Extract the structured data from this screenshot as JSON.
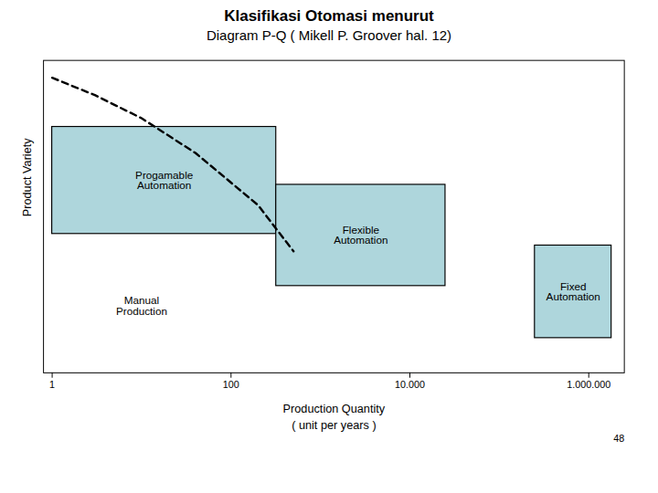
{
  "chart_data": {
    "type": "rect",
    "title": "Klasifikasi Otomasi menurut",
    "subtitle": "Diagram P-Q ( Mikell P. Groover hal. 12)",
    "xlabel": "Production Quantity\n( unit per years )",
    "ylabel": "Product Variety",
    "log": "x",
    "xlim": [
      0.8,
      2500000
    ],
    "ylim": [
      0,
      1.08
    ],
    "xticks": [
      1,
      100,
      {
        "value": 10000,
        "label": "10.000"
      },
      {
        "value": 1000000,
        "label": "1.000.000"
      }
    ],
    "yticks": [],
    "tick_labels": "x",
    "grid": false,
    "color": "#aed6dc",
    "boxes": [
      {
        "x0": 1,
        "x1": 320,
        "y0": 0.48,
        "y1": 0.85,
        "label": "Progamable\nAutomation"
      },
      {
        "x0": 320,
        "x1": 25000,
        "y0": 0.3,
        "y1": 0.65,
        "label": "Flexible\nAutomation"
      },
      {
        "x0": 250000,
        "x1": 1800000,
        "y0": 0.12,
        "y1": 0.44,
        "label": "Fixed\nAutomation"
      }
    ],
    "line": {
      "x": [
        1,
        3,
        10,
        40,
        200,
        500
      ],
      "y": [
        1.02,
        0.96,
        0.88,
        0.76,
        0.58,
        0.42
      ],
      "line_style": "dashed"
    },
    "annotations": [
      {
        "text": "Manual\nProduction",
        "x": 10,
        "y": 0.23
      },
      {
        "text": "48"
      }
    ]
  }
}
